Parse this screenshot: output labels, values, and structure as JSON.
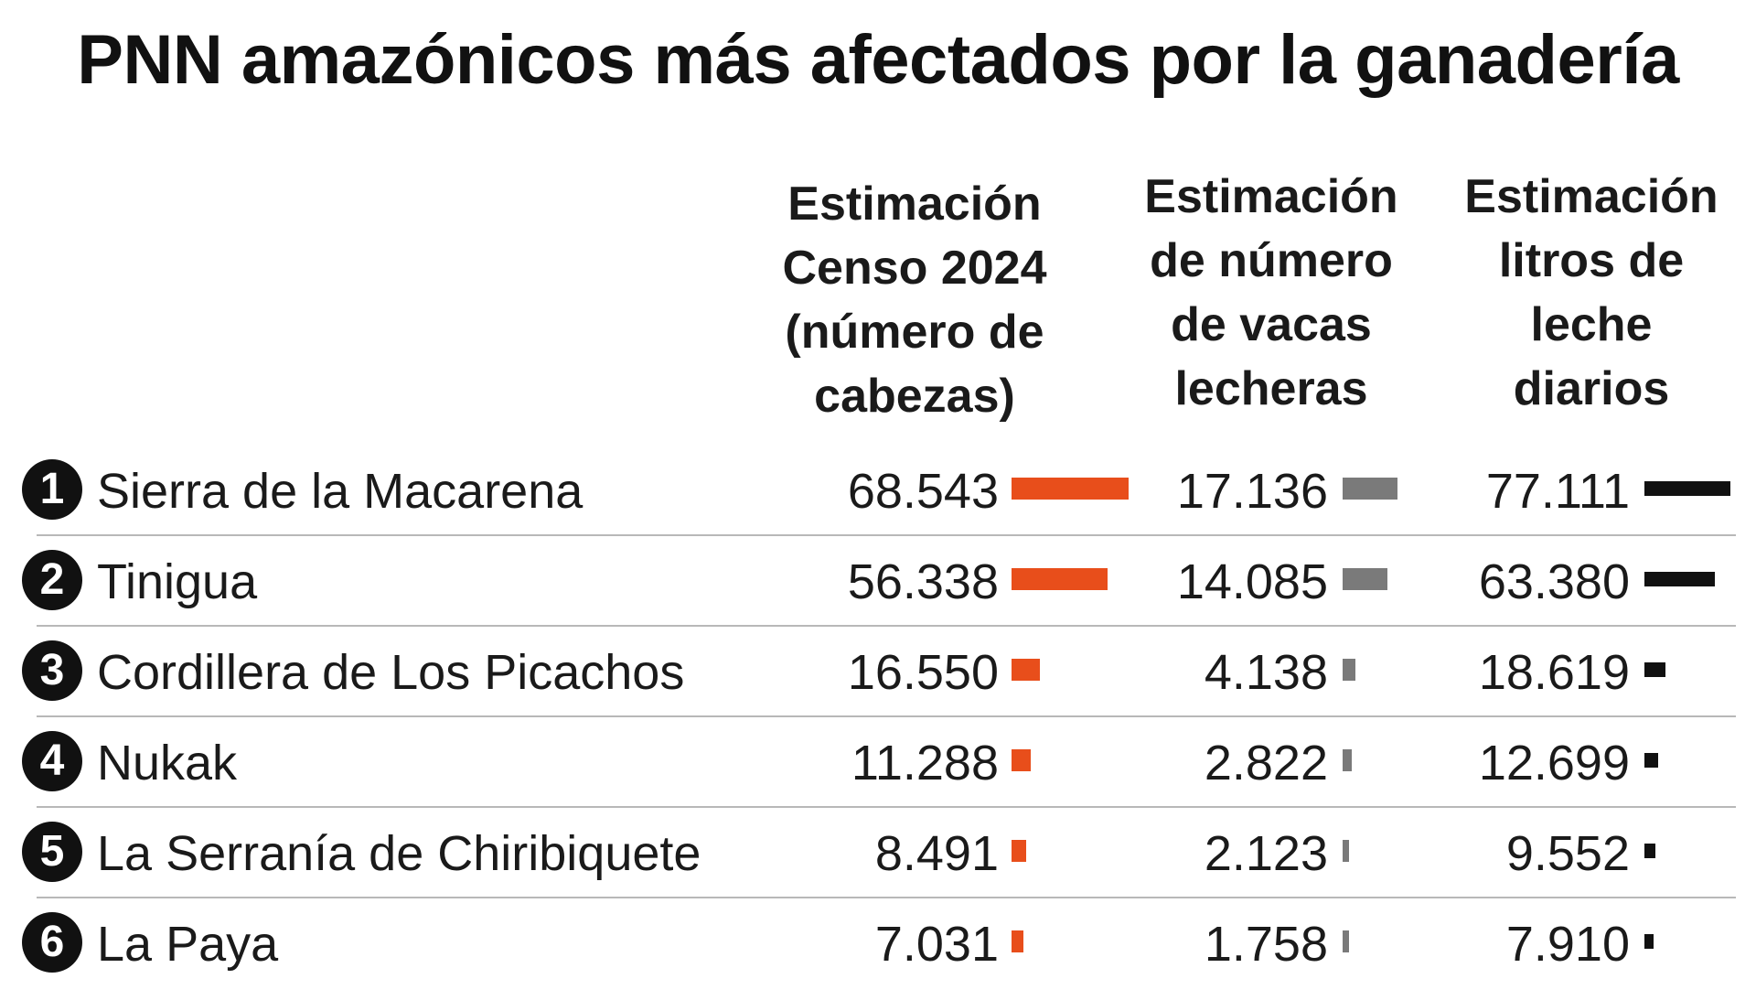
{
  "chart_data": {
    "type": "table",
    "title": "PNN amazónicos más afectados por la ganadería",
    "columns": [
      {
        "header_lines": [
          "Estimación",
          "Censo 2024",
          "(número de",
          "cabezas)"
        ],
        "color": "#e84e1b"
      },
      {
        "header_lines": [
          "Estimación",
          "de número",
          "de vacas",
          "lecheras"
        ],
        "color": "#7a7a7a"
      },
      {
        "header_lines": [
          "Estimación",
          "litros de",
          "leche",
          "diarios"
        ],
        "color": "#111111"
      }
    ],
    "rows": [
      {
        "rank": "1",
        "name": "Sierra de la Macarena",
        "labels": [
          "68.543",
          "17.136",
          "77.111"
        ],
        "values": [
          68543,
          17136,
          77111
        ]
      },
      {
        "rank": "2",
        "name": "Tinigua",
        "labels": [
          "56.338",
          "14.085",
          "63.380"
        ],
        "values": [
          56338,
          14085,
          63380
        ]
      },
      {
        "rank": "3",
        "name": "Cordillera de Los Picachos",
        "labels": [
          "16.550",
          "4.138",
          "18.619"
        ],
        "values": [
          16550,
          4138,
          18619
        ]
      },
      {
        "rank": "4",
        "name": "Nukak",
        "labels": [
          "11.288",
          "2.822",
          "12.699"
        ],
        "values": [
          11288,
          2822,
          12699
        ]
      },
      {
        "rank": "5",
        "name": "La Serranía de Chiribiquete",
        "labels": [
          "8.491",
          "2.123",
          "9.552"
        ],
        "values": [
          8491,
          2123,
          9552
        ]
      },
      {
        "rank": "6",
        "name": "La Paya",
        "labels": [
          "7.031",
          "1.758",
          "7.910"
        ],
        "values": [
          7031,
          1758,
          7910
        ]
      }
    ]
  }
}
